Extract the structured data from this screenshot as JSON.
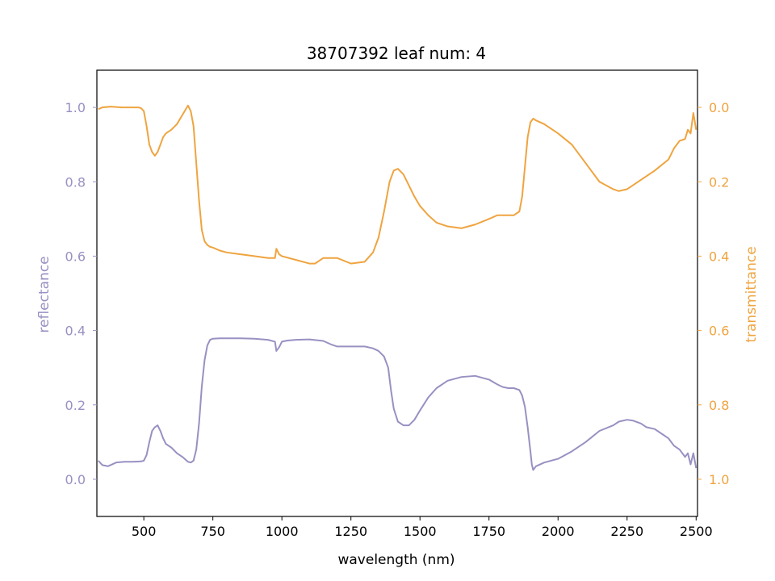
{
  "chart_data": {
    "type": "line",
    "title": "38707392 leaf num: 4",
    "xlabel": "wavelength (nm)",
    "ylabel_left": "reflectance",
    "ylabel_right": "transmittance",
    "xlim": [
      330,
      2505
    ],
    "ylim_left": [
      -0.1,
      1.1
    ],
    "ylim_right": [
      1.1,
      -0.1
    ],
    "right_axis_inverted": true,
    "grid": false,
    "x_ticks": [
      500,
      750,
      1000,
      1250,
      1500,
      1750,
      2000,
      2250,
      2500
    ],
    "y_ticks_left": [
      0.0,
      0.2,
      0.4,
      0.6,
      0.8,
      1.0
    ],
    "y_ticks_right": [
      0.0,
      0.2,
      0.4,
      0.6,
      0.8,
      1.0
    ],
    "colors": {
      "reflectance": "#9891c2",
      "transmittance": "#efa440"
    },
    "series": [
      {
        "name": "reflectance",
        "axis": "left",
        "x": [
          335,
          350,
          370,
          400,
          430,
          460,
          490,
          500,
          510,
          520,
          530,
          540,
          550,
          560,
          570,
          580,
          590,
          600,
          620,
          640,
          660,
          670,
          680,
          690,
          700,
          710,
          720,
          730,
          740,
          750,
          775,
          800,
          850,
          900,
          950,
          975,
          980,
          990,
          1000,
          1020,
          1050,
          1100,
          1150,
          1180,
          1200,
          1250,
          1300,
          1330,
          1350,
          1370,
          1385,
          1395,
          1405,
          1420,
          1440,
          1460,
          1480,
          1500,
          1530,
          1560,
          1600,
          1650,
          1700,
          1750,
          1780,
          1800,
          1820,
          1840,
          1860,
          1870,
          1880,
          1890,
          1900,
          1905,
          1910,
          1920,
          1950,
          2000,
          2050,
          2100,
          2150,
          2200,
          2220,
          2250,
          2270,
          2300,
          2320,
          2350,
          2380,
          2400,
          2420,
          2440,
          2460,
          2470,
          2480,
          2490,
          2500
        ],
        "y": [
          0.05,
          0.038,
          0.035,
          0.045,
          0.047,
          0.047,
          0.048,
          0.05,
          0.065,
          0.1,
          0.13,
          0.14,
          0.145,
          0.13,
          0.11,
          0.095,
          0.09,
          0.085,
          0.07,
          0.06,
          0.047,
          0.045,
          0.05,
          0.08,
          0.15,
          0.25,
          0.32,
          0.36,
          0.375,
          0.378,
          0.379,
          0.379,
          0.379,
          0.378,
          0.375,
          0.37,
          0.345,
          0.355,
          0.37,
          0.373,
          0.375,
          0.376,
          0.372,
          0.362,
          0.357,
          0.357,
          0.357,
          0.352,
          0.345,
          0.33,
          0.3,
          0.24,
          0.19,
          0.155,
          0.145,
          0.145,
          0.16,
          0.185,
          0.22,
          0.245,
          0.265,
          0.275,
          0.278,
          0.268,
          0.255,
          0.248,
          0.245,
          0.245,
          0.24,
          0.225,
          0.195,
          0.14,
          0.075,
          0.04,
          0.025,
          0.035,
          0.045,
          0.055,
          0.075,
          0.1,
          0.13,
          0.145,
          0.155,
          0.16,
          0.158,
          0.15,
          0.14,
          0.135,
          0.12,
          0.11,
          0.09,
          0.08,
          0.06,
          0.07,
          0.04,
          0.07,
          0.03
        ]
      },
      {
        "name": "transmittance",
        "axis": "right",
        "x": [
          335,
          350,
          380,
          420,
          460,
          480,
          490,
          500,
          510,
          520,
          530,
          540,
          550,
          560,
          570,
          580,
          600,
          620,
          640,
          660,
          670,
          680,
          690,
          700,
          710,
          720,
          730,
          740,
          750,
          775,
          800,
          850,
          900,
          950,
          975,
          980,
          990,
          1000,
          1050,
          1100,
          1120,
          1150,
          1200,
          1250,
          1300,
          1330,
          1350,
          1370,
          1390,
          1405,
          1420,
          1440,
          1460,
          1480,
          1500,
          1530,
          1560,
          1600,
          1650,
          1700,
          1750,
          1780,
          1800,
          1840,
          1860,
          1870,
          1880,
          1890,
          1900,
          1910,
          1920,
          1950,
          2000,
          2050,
          2100,
          2150,
          2200,
          2220,
          2250,
          2300,
          2350,
          2400,
          2420,
          2440,
          2460,
          2470,
          2480,
          2490,
          2500
        ],
        "y": [
          0.005,
          0.0,
          -0.002,
          0.0,
          0.0,
          0.0,
          0.002,
          0.01,
          0.05,
          0.1,
          0.12,
          0.13,
          0.12,
          0.1,
          0.08,
          0.07,
          0.06,
          0.045,
          0.02,
          -0.005,
          0.01,
          0.05,
          0.15,
          0.25,
          0.33,
          0.36,
          0.37,
          0.375,
          0.377,
          0.385,
          0.39,
          0.395,
          0.4,
          0.405,
          0.405,
          0.38,
          0.395,
          0.4,
          0.41,
          0.42,
          0.42,
          0.405,
          0.405,
          0.42,
          0.415,
          0.39,
          0.35,
          0.28,
          0.2,
          0.17,
          0.165,
          0.18,
          0.21,
          0.24,
          0.265,
          0.29,
          0.31,
          0.32,
          0.325,
          0.315,
          0.3,
          0.29,
          0.29,
          0.29,
          0.28,
          0.24,
          0.16,
          0.08,
          0.04,
          0.03,
          0.035,
          0.045,
          0.07,
          0.1,
          0.15,
          0.2,
          0.22,
          0.225,
          0.22,
          0.195,
          0.17,
          0.14,
          0.11,
          0.09,
          0.085,
          0.06,
          0.07,
          0.015,
          0.06
        ]
      }
    ]
  }
}
